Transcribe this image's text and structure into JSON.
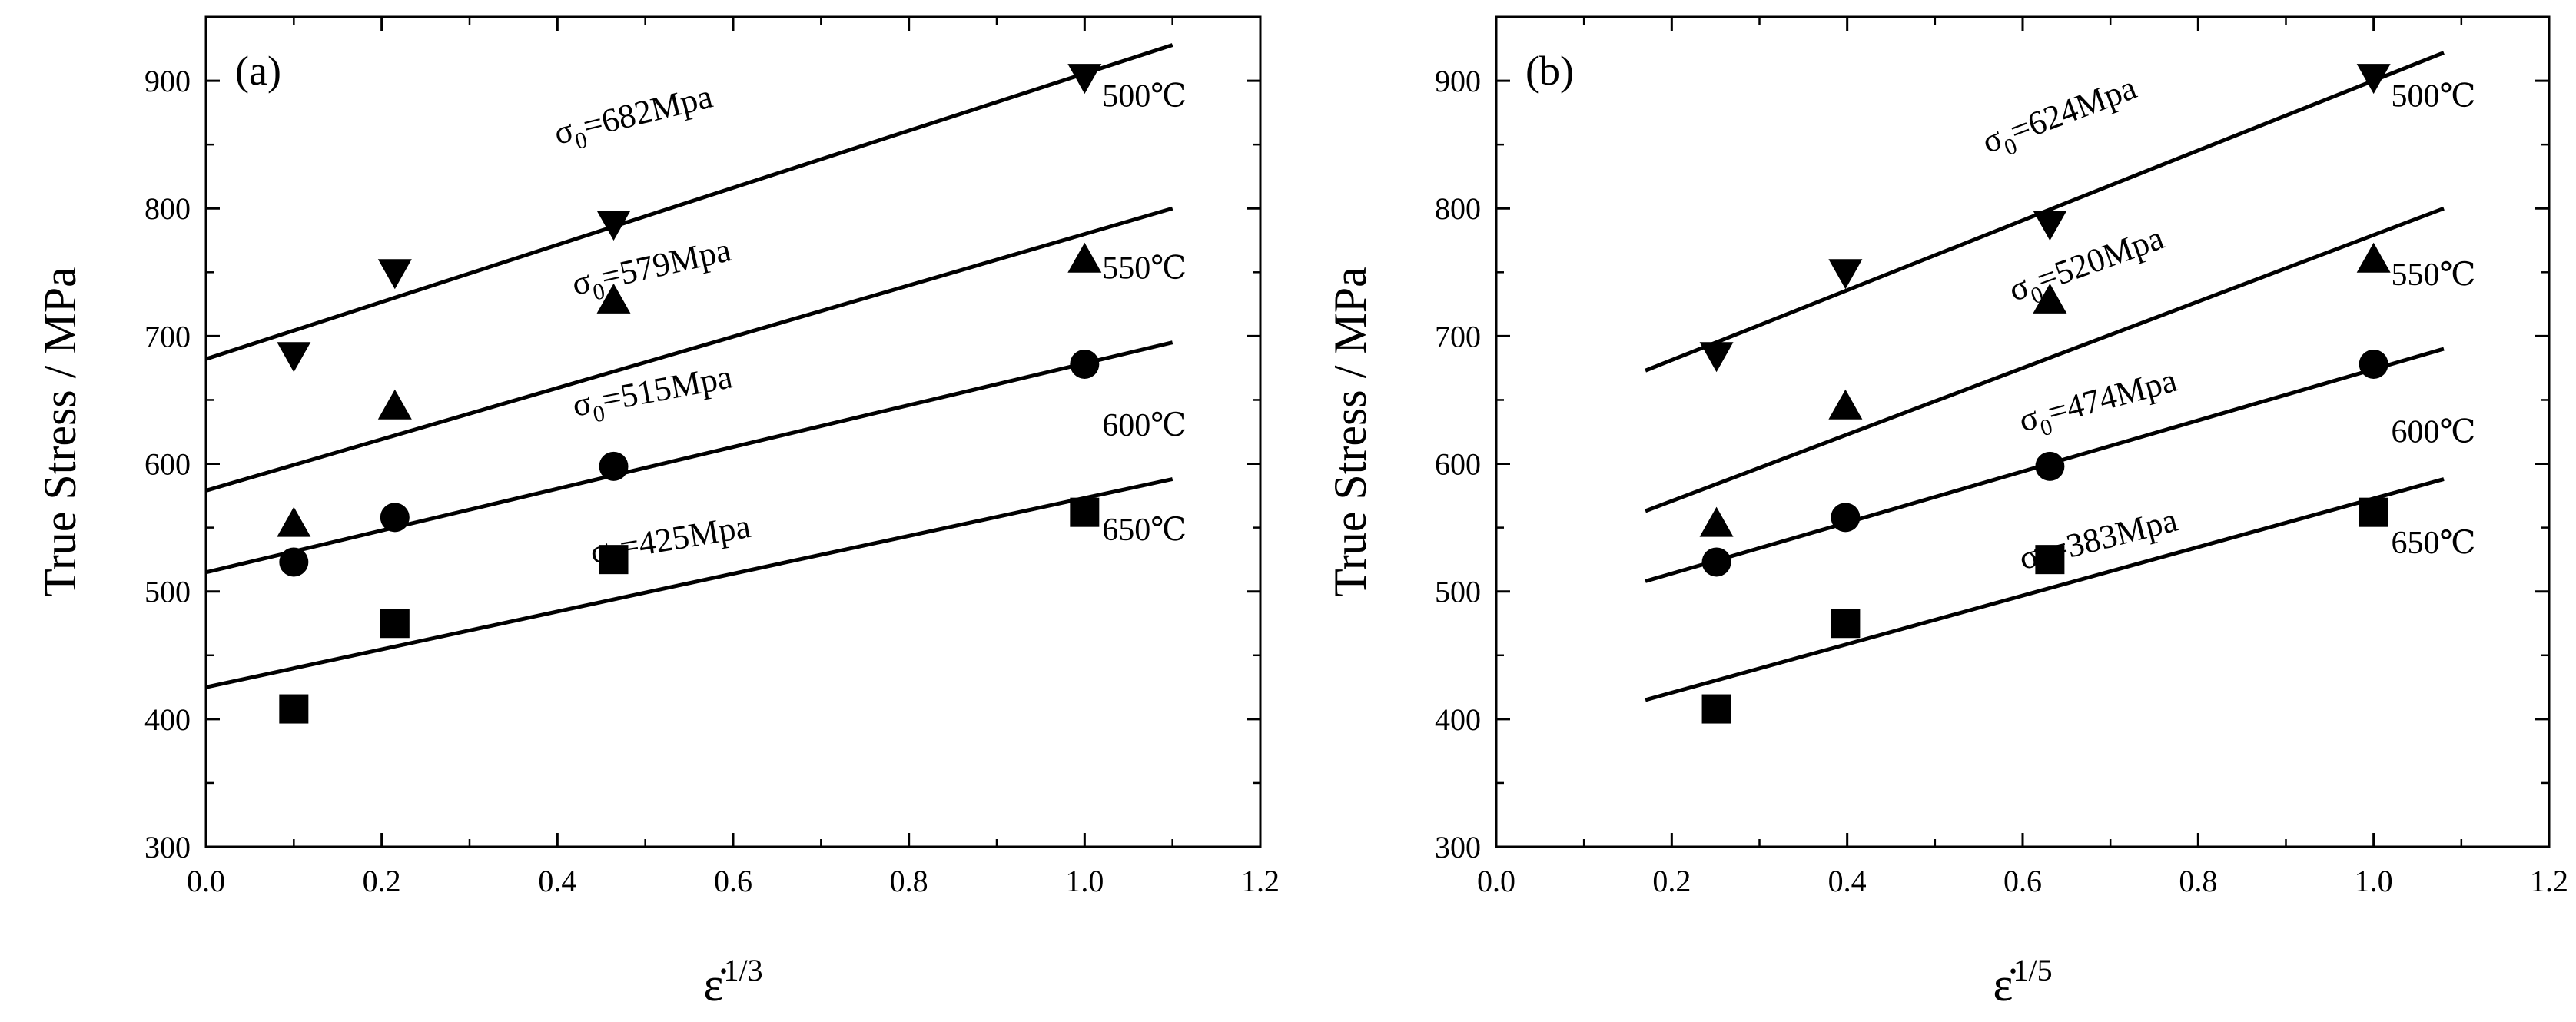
{
  "chart_data": [
    {
      "type": "scatter",
      "panel_label": "(a)",
      "ylabel": "True Stress / MPa",
      "xlabel": {
        "base": "ε̇",
        "exponent": "1/3"
      },
      "xlim": [
        0.0,
        1.2
      ],
      "ylim": [
        300,
        950
      ],
      "xticks": [
        0.0,
        0.2,
        0.4,
        0.6,
        0.8,
        1.0,
        1.2
      ],
      "yticks": [
        300,
        400,
        500,
        600,
        700,
        800,
        900
      ],
      "xtick_labels": [
        "0.0",
        "0.2",
        "0.4",
        "0.6",
        "0.8",
        "1.0",
        "1.2"
      ],
      "ytick_labels": [
        "300",
        "400",
        "500",
        "600",
        "700",
        "800",
        "900"
      ],
      "grid": false,
      "series": [
        {
          "name": "500℃",
          "marker": "triangle-down",
          "x": [
            0.1,
            0.215,
            0.464,
            1.0
          ],
          "y": [
            685,
            750,
            788,
            903
          ],
          "fit": {
            "x": [
              0.0,
              1.1
            ],
            "y": [
              682,
              928
            ]
          },
          "sigma_label": "=682Mpa"
        },
        {
          "name": "550℃",
          "marker": "triangle-up",
          "x": [
            0.1,
            0.215,
            0.464,
            1.0
          ],
          "y": [
            553,
            645,
            728,
            760
          ],
          "fit": {
            "x": [
              0.0,
              1.1
            ],
            "y": [
              579,
              800
            ]
          },
          "sigma_label": "=579Mpa"
        },
        {
          "name": "600℃",
          "marker": "circle",
          "x": [
            0.1,
            0.215,
            0.464,
            1.0
          ],
          "y": [
            523,
            558,
            598,
            678
          ],
          "fit": {
            "x": [
              0.0,
              1.1
            ],
            "y": [
              515,
              695
            ]
          },
          "sigma_label": "=515Mpa"
        },
        {
          "name": "650℃",
          "marker": "square",
          "x": [
            0.1,
            0.215,
            0.464,
            1.0
          ],
          "y": [
            408,
            475,
            525,
            562
          ],
          "fit": {
            "x": [
              0.0,
              1.1
            ],
            "y": [
              425,
              588
            ]
          },
          "sigma_label": "=425Mpa"
        }
      ]
    },
    {
      "type": "scatter",
      "panel_label": "(b)",
      "ylabel": "True Stress / MPa",
      "xlabel": {
        "base": "ε̇",
        "exponent": "1/5"
      },
      "xlim": [
        0.0,
        1.2
      ],
      "ylim": [
        300,
        950
      ],
      "xticks": [
        0.0,
        0.2,
        0.4,
        0.6,
        0.8,
        1.0,
        1.2
      ],
      "yticks": [
        300,
        400,
        500,
        600,
        700,
        800,
        900
      ],
      "xtick_labels": [
        "0.0",
        "0.2",
        "0.4",
        "0.6",
        "0.8",
        "1.0",
        "1.2"
      ],
      "ytick_labels": [
        "300",
        "400",
        "500",
        "600",
        "700",
        "800",
        "900"
      ],
      "grid": false,
      "series": [
        {
          "name": "500℃",
          "marker": "triangle-down",
          "x": [
            0.251,
            0.398,
            0.631,
            1.0
          ],
          "y": [
            685,
            750,
            788,
            903
          ],
          "fit": {
            "x": [
              0.17,
              1.08
            ],
            "y": [
              673,
              922
            ]
          },
          "sigma_label": "=624Mpa"
        },
        {
          "name": "550℃",
          "marker": "triangle-up",
          "x": [
            0.251,
            0.398,
            0.631,
            1.0
          ],
          "y": [
            553,
            645,
            728,
            760
          ],
          "fit": {
            "x": [
              0.17,
              1.08
            ],
            "y": [
              563,
              800
            ]
          },
          "sigma_label": "=520Mpa"
        },
        {
          "name": "600℃",
          "marker": "circle",
          "x": [
            0.251,
            0.398,
            0.631,
            1.0
          ],
          "y": [
            523,
            558,
            598,
            678
          ],
          "fit": {
            "x": [
              0.17,
              1.08
            ],
            "y": [
              508,
              690
            ]
          },
          "sigma_label": "=474Mpa"
        },
        {
          "name": "650℃",
          "marker": "square",
          "x": [
            0.251,
            0.398,
            0.631,
            1.0
          ],
          "y": [
            408,
            475,
            525,
            562
          ],
          "fit": {
            "x": [
              0.17,
              1.08
            ],
            "y": [
              415,
              588
            ]
          },
          "sigma_label": "=383Mpa"
        }
      ]
    }
  ]
}
